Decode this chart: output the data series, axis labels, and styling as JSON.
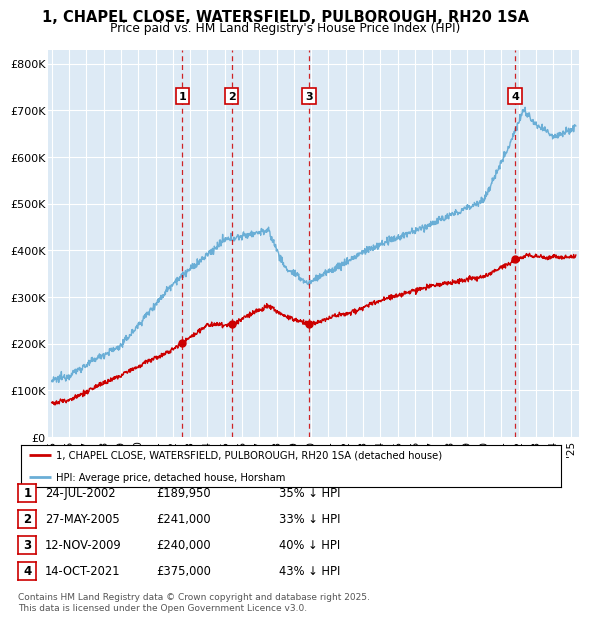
{
  "title": "1, CHAPEL CLOSE, WATERSFIELD, PULBOROUGH, RH20 1SA",
  "subtitle": "Price paid vs. HM Land Registry's House Price Index (HPI)",
  "legend_line1": "1, CHAPEL CLOSE, WATERSFIELD, PULBOROUGH, RH20 1SA (detached house)",
  "legend_line2": "HPI: Average price, detached house, Horsham",
  "transactions": [
    {
      "num": 1,
      "date": "24-JUL-2002",
      "price": "£189,950",
      "pct": "35%",
      "dir": "↓",
      "label": "HPI",
      "year_x": 2002.55
    },
    {
      "num": 2,
      "date": "27-MAY-2005",
      "price": "£241,000",
      "pct": "33%",
      "dir": "↓",
      "label": "HPI",
      "year_x": 2005.4
    },
    {
      "num": 3,
      "date": "12-NOV-2009",
      "price": "£240,000",
      "pct": "40%",
      "dir": "↓",
      "label": "HPI",
      "year_x": 2009.87
    },
    {
      "num": 4,
      "date": "14-OCT-2021",
      "price": "£375,000",
      "pct": "43%",
      "dir": "↓",
      "label": "HPI",
      "year_x": 2021.79
    }
  ],
  "footer": "Contains HM Land Registry data © Crown copyright and database right 2025.\nThis data is licensed under the Open Government Licence v3.0.",
  "ylim": [
    0,
    830000
  ],
  "xlim": [
    1994.8,
    2025.5
  ],
  "yticks": [
    0,
    100000,
    200000,
    300000,
    400000,
    500000,
    600000,
    700000,
    800000
  ],
  "ytick_labels": [
    "£0",
    "£100K",
    "£200K",
    "£300K",
    "£400K",
    "£500K",
    "£600K",
    "£700K",
    "£800K"
  ],
  "bg_color": "#ddeaf5",
  "red_line_color": "#cc0000",
  "blue_line_color": "#6aaed6",
  "grid_color": "#c8d8e8",
  "marker_box_color": "#cc0000",
  "xtick_years": [
    1995,
    1996,
    1997,
    1998,
    1999,
    2000,
    2001,
    2002,
    2003,
    2004,
    2005,
    2006,
    2007,
    2008,
    2009,
    2010,
    2011,
    2012,
    2013,
    2014,
    2015,
    2016,
    2017,
    2018,
    2019,
    2020,
    2021,
    2022,
    2023,
    2024,
    2025
  ]
}
